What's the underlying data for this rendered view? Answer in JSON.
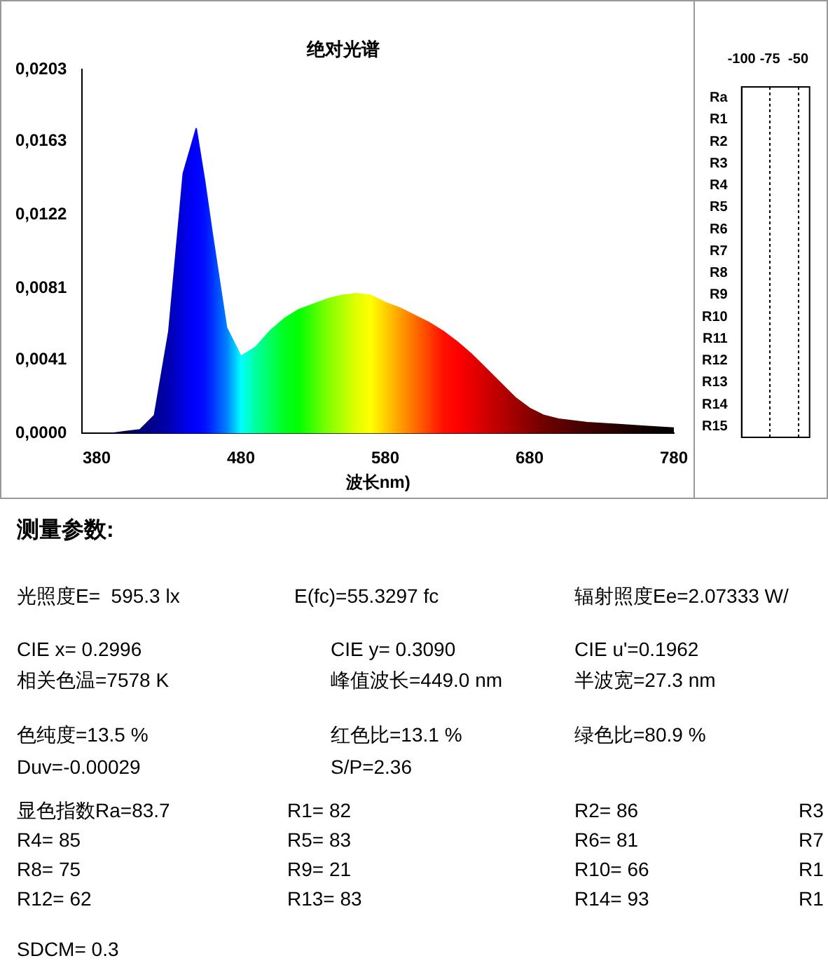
{
  "chart_data": [
    {
      "type": "area",
      "title": "绝对光谱",
      "xlabel": "波长nm)",
      "xlim": [
        370,
        780
      ],
      "xticks": [
        380,
        480,
        580,
        680,
        780
      ],
      "ylim": [
        0,
        0.0203
      ],
      "yticks": [
        {
          "value": 0,
          "label": "0,0000"
        },
        {
          "value": 0.0041,
          "label": "0,0041"
        },
        {
          "value": 0.0081,
          "label": "0,0081"
        },
        {
          "value": 0.0122,
          "label": "0,0122"
        },
        {
          "value": 0.0163,
          "label": "0,0163"
        },
        {
          "value": 0.0203,
          "label": "0,0203"
        }
      ],
      "series": [
        {
          "x": [
            380,
            390,
            400,
            410,
            420,
            430,
            440,
            449,
            455,
            460,
            470,
            480,
            490,
            500,
            510,
            520,
            530,
            540,
            550,
            560,
            570,
            580,
            590,
            600,
            610,
            620,
            630,
            640,
            650,
            660,
            670,
            680,
            690,
            700,
            720,
            740,
            760,
            780
          ],
          "values": [
            0,
            0,
            0.0001,
            0.0002,
            0.001,
            0.0057,
            0.0145,
            0.017,
            0.014,
            0.0112,
            0.0059,
            0.0043,
            0.0048,
            0.0057,
            0.0064,
            0.0069,
            0.0072,
            0.0075,
            0.0077,
            0.0078,
            0.0077,
            0.0073,
            0.007,
            0.0066,
            0.0062,
            0.0057,
            0.0051,
            0.0044,
            0.0036,
            0.0028,
            0.002,
            0.0014,
            0.001,
            0.0008,
            0.0006,
            0.0005,
            0.0004,
            0.0003
          ],
          "colors": [
            "#000020",
            "#000030",
            "#000050",
            "#000070",
            "#000090",
            "#0000b0",
            "#0000e0",
            "#0000ff",
            "#0010ff",
            "#0030ff",
            "#0080ff",
            "#00ffff",
            "#00ffa0",
            "#00ff60",
            "#00ff20",
            "#00ff00",
            "#40ff00",
            "#80ff00",
            "#b0ff00",
            "#e0ff00",
            "#ffff00",
            "#ffd000",
            "#ffa000",
            "#ff7000",
            "#ff4000",
            "#ff1000",
            "#ff0000",
            "#e80000",
            "#d00000",
            "#b80000",
            "#a00000",
            "#880000",
            "#700000",
            "#600000",
            "#400000",
            "#280000",
            "#100000",
            "#000000"
          ]
        }
      ]
    },
    {
      "type": "bar",
      "orientation": "horizontal",
      "categories": [
        "Ra",
        "R1",
        "R2",
        "R3",
        "R4",
        "R5",
        "R6",
        "R7",
        "R8",
        "R9",
        "R10",
        "R11",
        "R12",
        "R13",
        "R14",
        "R15"
      ],
      "values": [
        null,
        null,
        null,
        null,
        null,
        null,
        null,
        null,
        null,
        null,
        null,
        null,
        null,
        null,
        null,
        null
      ],
      "xlim": [
        -100,
        -40
      ],
      "xticks": [
        -100,
        -75,
        -50
      ],
      "grid": "x"
    },
    {
      "type": "other",
      "title": "测量参数:",
      "annotations": [
        "光照度E=  595.3 lx",
        "E(fc)=55.3297 fc",
        "辐射照度Ee=2.07333 W/",
        "CIE x= 0.2996",
        "CIE y= 0.3090",
        "CIE u'=0.1962",
        "相关色温=7578 K",
        "峰值波长=449.0 nm",
        "半波宽=27.3 nm",
        "色纯度=13.5 %",
        "红色比=13.1 %",
        "绿色比=80.9 %",
        "Duv=-0.00029",
        "S/P=2.36",
        "显色指数Ra=83.7",
        "R1= 82",
        "R2= 86",
        "R3",
        "R4= 85",
        "R5= 83",
        "R6= 81",
        "R7",
        "R8= 75",
        "R9= 21",
        "R10= 66",
        "R1",
        "R12= 62",
        "R13= 83",
        "R14= 93",
        "R1",
        "SDCM= 0.3"
      ]
    }
  ]
}
